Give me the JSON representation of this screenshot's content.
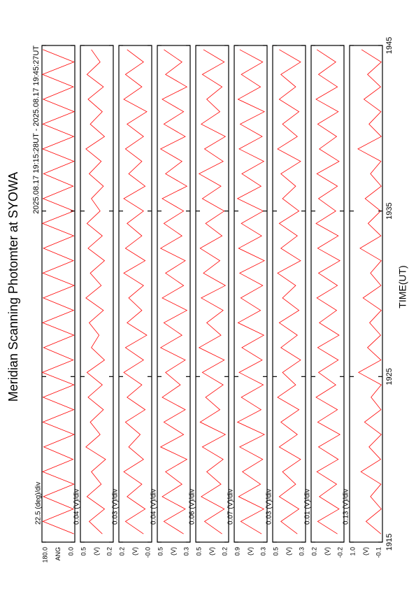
{
  "header": {
    "title": "Meridian Scanning Photomter at SYOWA",
    "subtitle": "2025.08.17 19:15:28UT - 2025.08.17 19:45:27UT",
    "xlabel": "TIME(UT)"
  },
  "chart_data": [
    {
      "type": "line",
      "scale_label": "22.5 (deg)/div",
      "ylabel": "ANG",
      "color": "#ff0000",
      "x": [
        1915.5,
        1916.25,
        1917,
        1917.75,
        1918.5,
        1919.25,
        1920,
        1920.75,
        1921.5,
        1922.25,
        1923,
        1923.75,
        1924.5,
        1925.25,
        1926,
        1926.75,
        1927.5,
        1928.25,
        1929,
        1929.75,
        1930.5,
        1931.25,
        1932,
        1932.75,
        1933.5,
        1934.25,
        1935,
        1935.75,
        1936.5,
        1937.25,
        1938,
        1938.75,
        1939.5,
        1940.25,
        1941,
        1941.75,
        1942.5,
        1943.25,
        1944,
        1944.75
      ],
      "values": [
        5,
        175,
        8,
        172,
        5,
        176,
        10,
        170,
        4,
        175,
        6,
        174,
        5,
        178,
        9,
        171,
        5,
        176,
        7,
        173,
        4,
        175,
        8,
        172,
        6,
        177,
        5,
        174,
        9,
        171,
        5,
        176,
        6,
        175,
        4,
        173,
        8,
        177,
        5,
        175
      ],
      "xlim": [
        1915,
        1945
      ],
      "xticks": [
        1915,
        1925,
        1935,
        1945
      ],
      "ylim": [
        0,
        180
      ],
      "yticks": [
        {
          "value": 180,
          "label": "180.0"
        },
        {
          "value": 0,
          "label": "0.0"
        }
      ]
    },
    {
      "type": "line",
      "scale_label": "0.04 (V)/div",
      "ylabel": "(V)",
      "color": "#ff0000",
      "x": [
        1915.5,
        1916.25,
        1917,
        1917.75,
        1918.5,
        1919.25,
        1920,
        1920.75,
        1921.5,
        1922.25,
        1923,
        1923.75,
        1924.5,
        1925.25,
        1926,
        1926.75,
        1927.5,
        1928.25,
        1929,
        1929.75,
        1930.5,
        1931.25,
        1932,
        1932.75,
        1933.5,
        1934.25,
        1935,
        1935.75,
        1936.5,
        1937.25,
        1938,
        1938.75,
        1939.5,
        1940.25,
        1941,
        1941.75,
        1942.5,
        1943.25,
        1944,
        1944.75
      ],
      "values": [
        0.3,
        0.42,
        0.28,
        0.44,
        0.31,
        0.4,
        0.27,
        0.45,
        0.32,
        0.41,
        0.29,
        0.43,
        0.3,
        0.44,
        0.28,
        0.4,
        0.33,
        0.42,
        0.29,
        0.45,
        0.31,
        0.41,
        0.28,
        0.43,
        0.3,
        0.44,
        0.32,
        0.4,
        0.29,
        0.42,
        0.31,
        0.45,
        0.28,
        0.41,
        0.3,
        0.43,
        0.29,
        0.44,
        0.32,
        0.4
      ],
      "xlim": [
        1915,
        1945
      ],
      "xticks": [
        1915,
        1925,
        1935,
        1945
      ],
      "ylim": [
        0.2,
        0.5
      ],
      "yticks": [
        0.5,
        0.2
      ]
    },
    {
      "type": "line",
      "scale_label": "0.03 (V)/div",
      "ylabel": "(V)",
      "color": "#ff0000",
      "x": [
        1915.5,
        1916.25,
        1917,
        1917.75,
        1918.5,
        1919.25,
        1920,
        1920.75,
        1921.5,
        1922.25,
        1923,
        1923.75,
        1924.5,
        1925.25,
        1926,
        1926.75,
        1927.5,
        1928.25,
        1929,
        1929.75,
        1930.5,
        1931.25,
        1932,
        1932.75,
        1933.5,
        1934.25,
        1935,
        1935.75,
        1936.5,
        1937.25,
        1938,
        1938.75,
        1939.5,
        1940.25,
        1941,
        1941.75,
        1942.5,
        1943.25,
        1944,
        1944.75
      ],
      "values": [
        0.05,
        0.16,
        0.04,
        0.15,
        0.06,
        0.17,
        0.05,
        0.14,
        0.07,
        0.16,
        0.04,
        0.15,
        0.06,
        0.17,
        0.05,
        0.16,
        0.03,
        0.15,
        0.06,
        0.14,
        0.05,
        0.17,
        0.04,
        0.16,
        0.06,
        0.15,
        0.05,
        0.17,
        0.04,
        0.14,
        0.06,
        0.16,
        0.05,
        0.15,
        0.03,
        0.17,
        0.06,
        0.16,
        0.05,
        0.15
      ],
      "xlim": [
        1915,
        1945
      ],
      "xticks": [
        1915,
        1925,
        1935,
        1945
      ],
      "ylim": [
        0,
        0.2
      ],
      "yticks": [
        0.2,
        {
          "value": 0,
          "label": "-0.0"
        }
      ]
    },
    {
      "type": "line",
      "scale_label": "0.04 (V)/div",
      "ylabel": "(V)",
      "color": "#ff0000",
      "x": [
        1915.5,
        1916.25,
        1917,
        1917.75,
        1918.5,
        1919.25,
        1920,
        1920.75,
        1921.5,
        1922.25,
        1923,
        1923.75,
        1924.5,
        1925.25,
        1926,
        1926.75,
        1927.5,
        1928.25,
        1929,
        1929.75,
        1930.5,
        1931.25,
        1932,
        1932.75,
        1933.5,
        1934.25,
        1935,
        1935.75,
        1936.5,
        1937.25,
        1938,
        1938.75,
        1939.5,
        1940.25,
        1941,
        1941.75,
        1942.5,
        1943.25,
        1944,
        1944.75
      ],
      "values": [
        0.34,
        0.46,
        0.33,
        0.47,
        0.35,
        0.45,
        0.32,
        0.48,
        0.34,
        0.46,
        0.33,
        0.47,
        0.36,
        0.45,
        0.33,
        0.48,
        0.35,
        0.46,
        0.32,
        0.47,
        0.34,
        0.45,
        0.33,
        0.48,
        0.35,
        0.46,
        0.34,
        0.47,
        0.32,
        0.45,
        0.35,
        0.48,
        0.33,
        0.46,
        0.34,
        0.47,
        0.32,
        0.45,
        0.35,
        0.46
      ],
      "xlim": [
        1915,
        1945
      ],
      "xticks": [
        1915,
        1925,
        1935,
        1945
      ],
      "ylim": [
        0.3,
        0.5
      ],
      "yticks": [
        0.5,
        0.3
      ]
    },
    {
      "type": "line",
      "scale_label": "0.06 (V)/div",
      "ylabel": "(V)",
      "color": "#ff0000",
      "x": [
        1915.5,
        1916.25,
        1917,
        1917.75,
        1918.5,
        1919.25,
        1920,
        1920.75,
        1921.5,
        1922.25,
        1923,
        1923.75,
        1924.5,
        1925.25,
        1926,
        1926.75,
        1927.5,
        1928.25,
        1929,
        1929.75,
        1930.5,
        1931.25,
        1932,
        1932.75,
        1933.5,
        1934.25,
        1935,
        1935.75,
        1936.5,
        1937.25,
        1938,
        1938.75,
        1939.5,
        1940.25,
        1941,
        1941.75,
        1942.5,
        1943.25,
        1944,
        1944.75
      ],
      "values": [
        0.26,
        0.42,
        0.24,
        0.45,
        0.27,
        0.4,
        0.25,
        0.44,
        0.23,
        0.46,
        0.28,
        0.41,
        0.25,
        0.44,
        0.24,
        0.47,
        0.27,
        0.4,
        0.25,
        0.45,
        0.23,
        0.43,
        0.28,
        0.46,
        0.26,
        0.41,
        0.24,
        0.44,
        0.27,
        0.47,
        0.25,
        0.42,
        0.23,
        0.45,
        0.28,
        0.4,
        0.26,
        0.44,
        0.24,
        0.43
      ],
      "xlim": [
        1915,
        1945
      ],
      "xticks": [
        1915,
        1925,
        1935,
        1945
      ],
      "ylim": [
        0.2,
        0.5
      ],
      "yticks": [
        0.5,
        0.2
      ]
    },
    {
      "type": "line",
      "scale_label": "0.07 (V)/div",
      "ylabel": "(V)",
      "color": "#ff0000",
      "x": [
        1915.5,
        1916.25,
        1917,
        1917.75,
        1918.5,
        1919.25,
        1920,
        1920.75,
        1921.5,
        1922.25,
        1923,
        1923.75,
        1924.5,
        1925.25,
        1926,
        1926.75,
        1927.5,
        1928.25,
        1929,
        1929.75,
        1930.5,
        1931.25,
        1932,
        1932.75,
        1933.5,
        1934.25,
        1935,
        1935.75,
        1936.5,
        1937.25,
        1938,
        1938.75,
        1939.5,
        1940.25,
        1941,
        1941.75,
        1942.5,
        1943.25,
        1944,
        1944.75
      ],
      "values": [
        0.4,
        0.78,
        0.36,
        0.82,
        0.42,
        0.75,
        0.38,
        0.8,
        0.35,
        0.84,
        0.41,
        0.77,
        0.37,
        0.81,
        0.39,
        0.76,
        0.36,
        0.83,
        0.42,
        0.78,
        0.38,
        0.8,
        0.35,
        0.82,
        0.4,
        0.77,
        0.37,
        0.84,
        0.41,
        0.76,
        0.36,
        0.81,
        0.39,
        0.79,
        0.35,
        0.83,
        0.42,
        0.77,
        0.38,
        0.8
      ],
      "xlim": [
        1915,
        1945
      ],
      "xticks": [
        1915,
        1925,
        1935,
        1945
      ],
      "ylim": [
        0.3,
        0.9
      ],
      "yticks": [
        0.9,
        0.3
      ]
    },
    {
      "type": "line",
      "scale_label": "0.03 (V)/div",
      "ylabel": "(V)",
      "color": "#ff0000",
      "x": [
        1915.5,
        1916.25,
        1917,
        1917.75,
        1918.5,
        1919.25,
        1920,
        1920.75,
        1921.5,
        1922.25,
        1923,
        1923.75,
        1924.5,
        1925.25,
        1926,
        1926.75,
        1927.5,
        1928.25,
        1929,
        1929.75,
        1930.5,
        1931.25,
        1932,
        1932.75,
        1933.5,
        1934.25,
        1935,
        1935.75,
        1936.5,
        1937.25,
        1938,
        1938.75,
        1939.5,
        1940.25,
        1941,
        1941.75,
        1942.5,
        1943.25,
        1944,
        1944.75
      ],
      "values": [
        0.35,
        0.45,
        0.34,
        0.46,
        0.36,
        0.44,
        0.33,
        0.46,
        0.35,
        0.45,
        0.34,
        0.47,
        0.36,
        0.44,
        0.33,
        0.45,
        0.35,
        0.46,
        0.34,
        0.44,
        0.36,
        0.47,
        0.33,
        0.45,
        0.35,
        0.46,
        0.34,
        0.44,
        0.36,
        0.45,
        0.33,
        0.47,
        0.35,
        0.44,
        0.34,
        0.46,
        0.36,
        0.45,
        0.33,
        0.46
      ],
      "xlim": [
        1915,
        1945
      ],
      "xticks": [
        1915,
        1925,
        1935,
        1945
      ],
      "ylim": [
        0.3,
        0.5
      ],
      "yticks": [
        0.5,
        0.3
      ]
    },
    {
      "type": "line",
      "scale_label": "0.01 (V)/div",
      "ylabel": "(V)",
      "color": "#ff0000",
      "x": [
        1915.5,
        1916.25,
        1917,
        1917.75,
        1918.5,
        1919.25,
        1920,
        1920.75,
        1921.5,
        1922.25,
        1923,
        1923.75,
        1924.5,
        1925.25,
        1926,
        1926.75,
        1927.5,
        1928.25,
        1929,
        1929.75,
        1930.5,
        1931.25,
        1932,
        1932.75,
        1933.5,
        1934.25,
        1935,
        1935.75,
        1936.5,
        1937.25,
        1938,
        1938.75,
        1939.5,
        1940.25,
        1941,
        1941.75,
        1942.5,
        1943.25,
        1944,
        1944.75
      ],
      "values": [
        -0.12,
        0.12,
        -0.14,
        0.1,
        -0.11,
        0.13,
        -0.13,
        0.11,
        -0.15,
        0.12,
        -0.12,
        0.14,
        -0.1,
        0.11,
        -0.13,
        0.12,
        -0.14,
        0.1,
        -0.11,
        0.13,
        -0.12,
        0.11,
        -0.15,
        0.12,
        -0.13,
        0.14,
        -0.1,
        0.11,
        -0.12,
        0.13,
        -0.14,
        0.1,
        -0.11,
        0.12,
        -0.13,
        0.14,
        -0.12,
        0.11,
        -0.1,
        0.13
      ],
      "xlim": [
        1915,
        1945
      ],
      "xticks": [
        1915,
        1925,
        1935,
        1945
      ],
      "ylim": [
        -0.2,
        0.2
      ],
      "yticks": [
        0.2,
        -0.2
      ]
    },
    {
      "type": "line",
      "scale_label": "0.13 (V)/div",
      "ylabel": "(V)",
      "color": "#ff0000",
      "x": [
        1915.5,
        1916.25,
        1917,
        1917.75,
        1918.5,
        1919.25,
        1920,
        1920.75,
        1921.5,
        1922.25,
        1923,
        1923.75,
        1924.5,
        1925.25,
        1926,
        1926.75,
        1927.5,
        1928.25,
        1929,
        1929.75,
        1930.5,
        1931.25,
        1932,
        1932.75,
        1933.5,
        1934.25,
        1935,
        1935.75,
        1936.5,
        1937.25,
        1938,
        1938.75,
        1939.5,
        1940.25,
        1941,
        1941.75,
        1942.5,
        1943.25,
        1944,
        1944.75
      ],
      "values": [
        -0.05,
        0.45,
        -0.06,
        0.3,
        -0.05,
        0.62,
        -0.04,
        0.35,
        -0.06,
        0.5,
        -0.05,
        0.28,
        -0.06,
        0.7,
        -0.05,
        0.4,
        -0.04,
        0.33,
        -0.06,
        0.55,
        -0.05,
        0.3,
        -0.06,
        0.65,
        -0.05,
        0.38,
        -0.04,
        0.48,
        -0.06,
        0.3,
        -0.05,
        0.72,
        -0.06,
        0.35,
        -0.05,
        0.52,
        -0.04,
        0.4,
        -0.06,
        0.6
      ],
      "xlim": [
        1915,
        1945
      ],
      "xticks": [
        1915,
        1925,
        1935,
        1945
      ],
      "ylim": [
        -0.1,
        1.0
      ],
      "yticks": [
        {
          "value": 1,
          "label": "1.0"
        },
        -0.1
      ]
    }
  ]
}
